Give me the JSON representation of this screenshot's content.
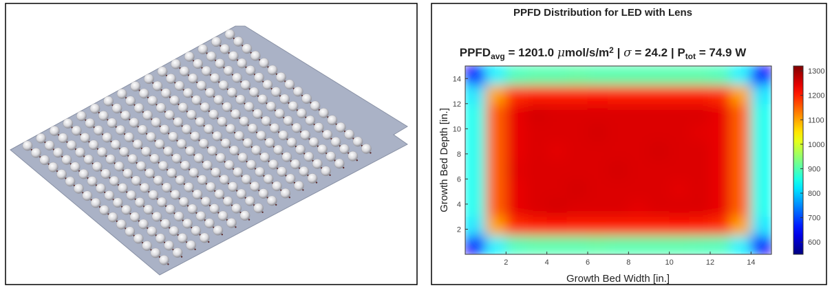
{
  "chart_data": {
    "type": "heatmap",
    "title": "PPFD Distribution for LED with Lens",
    "subtitle_parts": [
      "PPFD",
      "avg",
      " = 1201.0 ",
      "μ",
      "mol/s/m",
      "2",
      " | ",
      "σ",
      " = 24.2 | P",
      "tot",
      " = 74.9 W"
    ],
    "x_label": "Growth Bed Width [in.]",
    "y_label": "Growth Bed Depth [in.]",
    "xbins": [
      0,
      1,
      2,
      3,
      4,
      5,
      6,
      7,
      8,
      9,
      10,
      11,
      12,
      13,
      14,
      15
    ],
    "ybins": [
      0,
      1.5,
      3,
      4.5,
      6,
      7.5,
      9,
      10.5,
      12,
      13.5,
      15
    ],
    "values": [
      [
        650,
        830,
        890,
        900,
        900,
        900,
        905,
        900,
        900,
        900,
        900,
        895,
        890,
        830,
        650
      ],
      [
        820,
        1100,
        1190,
        1200,
        1205,
        1200,
        1200,
        1200,
        1200,
        1200,
        1205,
        1200,
        1190,
        1100,
        820
      ],
      [
        850,
        1150,
        1240,
        1250,
        1255,
        1250,
        1250,
        1250,
        1245,
        1250,
        1250,
        1250,
        1240,
        1150,
        850
      ],
      [
        850,
        1150,
        1240,
        1250,
        1250,
        1255,
        1250,
        1250,
        1250,
        1250,
        1245,
        1250,
        1240,
        1150,
        850
      ],
      [
        850,
        1150,
        1245,
        1250,
        1250,
        1250,
        1250,
        1255,
        1250,
        1250,
        1250,
        1250,
        1240,
        1150,
        850
      ],
      [
        850,
        1150,
        1240,
        1250,
        1245,
        1250,
        1250,
        1250,
        1250,
        1255,
        1250,
        1250,
        1240,
        1150,
        850
      ],
      [
        850,
        1150,
        1240,
        1250,
        1250,
        1250,
        1255,
        1250,
        1250,
        1250,
        1250,
        1245,
        1240,
        1150,
        850
      ],
      [
        850,
        1150,
        1240,
        1255,
        1250,
        1250,
        1250,
        1250,
        1250,
        1250,
        1250,
        1250,
        1240,
        1150,
        850
      ],
      [
        820,
        1100,
        1190,
        1200,
        1200,
        1200,
        1205,
        1200,
        1200,
        1200,
        1200,
        1200,
        1190,
        1100,
        820
      ],
      [
        650,
        830,
        890,
        900,
        900,
        905,
        900,
        900,
        900,
        900,
        900,
        900,
        890,
        830,
        650
      ]
    ],
    "xlim": [
      0,
      15
    ],
    "ylim": [
      0,
      15
    ],
    "xticks": [
      2,
      4,
      6,
      8,
      10,
      12,
      14
    ],
    "yticks": [
      2,
      4,
      6,
      8,
      10,
      12,
      14
    ],
    "clim": [
      550,
      1320
    ],
    "cticks": [
      600,
      700,
      800,
      900,
      1000,
      1100,
      1200,
      1300
    ],
    "colormap": "jet"
  }
}
